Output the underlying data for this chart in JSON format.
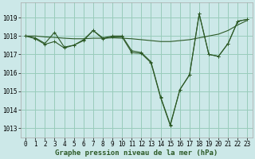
{
  "title": "Graphe pression niveau de la mer (hPa)",
  "bg_color": "#cce8e8",
  "grid_color": "#99ccbb",
  "line_color": "#2d5a27",
  "xlim": [
    -0.5,
    23.5
  ],
  "ylim": [
    1012.5,
    1019.8
  ],
  "yticks": [
    1013,
    1014,
    1015,
    1016,
    1017,
    1018,
    1019
  ],
  "xticks": [
    0,
    1,
    2,
    3,
    4,
    5,
    6,
    7,
    8,
    9,
    10,
    11,
    12,
    13,
    14,
    15,
    16,
    17,
    18,
    19,
    20,
    21,
    22,
    23
  ],
  "series_main": [
    1018.0,
    1017.9,
    1017.6,
    1018.2,
    1017.4,
    1017.5,
    1017.8,
    1018.3,
    1017.9,
    1018.0,
    1018.0,
    1017.2,
    1017.1,
    1016.6,
    1014.7,
    1013.2,
    1015.1,
    1015.9,
    1019.2,
    1017.0,
    1016.9,
    1017.6,
    1018.8,
    1018.9
  ],
  "series_b": [
    1018.0,
    1017.85,
    1017.55,
    1017.7,
    1017.35,
    1017.5,
    1017.75,
    1018.3,
    1017.85,
    1017.95,
    1017.95,
    1017.1,
    1017.05,
    1016.55,
    1014.65,
    1013.15,
    1015.1,
    1015.9,
    1019.2,
    1017.0,
    1016.9,
    1017.6,
    1018.8,
    1018.9
  ],
  "series_linear": [
    1018.0,
    1018.0,
    1017.95,
    1017.92,
    1017.88,
    1017.85,
    1017.85,
    1017.88,
    1017.88,
    1017.9,
    1017.88,
    1017.85,
    1017.8,
    1017.75,
    1017.7,
    1017.7,
    1017.75,
    1017.8,
    1017.9,
    1018.0,
    1018.1,
    1018.3,
    1018.6,
    1018.85
  ],
  "title_fontsize": 6.5,
  "tick_fontsize": 5.5
}
